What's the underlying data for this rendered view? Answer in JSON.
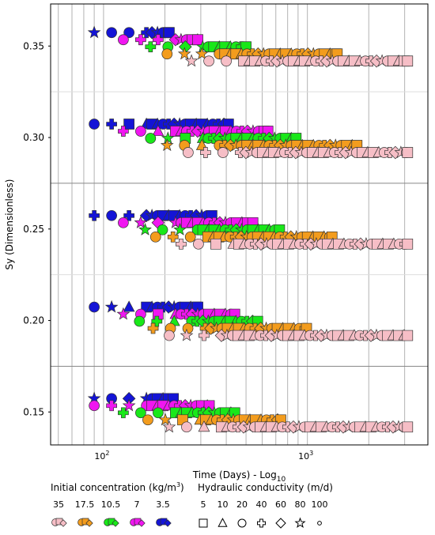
{
  "chart_data": {
    "type": "scatter",
    "title": "",
    "xlabel": "Time (Days) - Log",
    "xlabel_sub": "10",
    "ylabel": "Sy (Dimensionless)",
    "x_scale": "log",
    "xlim": [
      55,
      3900
    ],
    "ylim": [
      0.132,
      0.373
    ],
    "y_ticks": [
      {
        "value": 0.15,
        "label": "0.15"
      },
      {
        "value": 0.2,
        "label": "0.20"
      },
      {
        "value": 0.25,
        "label": "0.25"
      },
      {
        "value": 0.3,
        "label": "0.30"
      },
      {
        "value": 0.35,
        "label": "0.35"
      }
    ],
    "x_ticks": [
      {
        "value": 100,
        "label": "10",
        "sup": "2"
      },
      {
        "value": 1000,
        "label": "10",
        "sup": "3"
      }
    ],
    "grid": true,
    "group_separators_y": [
      0.175,
      0.275
    ],
    "group_centers_y": [
      0.15,
      0.2,
      0.25,
      0.3,
      0.35
    ],
    "concentration_legend": {
      "title": "Initial concentration (kg/m",
      "title_sup": "3",
      "title_end": ")",
      "items": [
        {
          "label": "35",
          "color": "#f6bec6"
        },
        {
          "label": "17.5",
          "color": "#f39c1d"
        },
        {
          "label": "10.5",
          "color": "#19e819"
        },
        {
          "label": "7",
          "color": "#f016f0"
        },
        {
          "label": "3.5",
          "color": "#1414d6"
        }
      ]
    },
    "conductivity_legend": {
      "title": "Hydraulic conductivity (m/d)",
      "items": [
        {
          "label": "5",
          "marker": "square"
        },
        {
          "label": "10",
          "marker": "triangle"
        },
        {
          "label": "20",
          "marker": "circle"
        },
        {
          "label": "40",
          "marker": "cross"
        },
        {
          "label": "60",
          "marker": "diamond"
        },
        {
          "label": "80",
          "marker": "star"
        },
        {
          "label": "100",
          "marker": "small-circle"
        }
      ]
    },
    "series": [
      {
        "sy": 0.35,
        "concentration": "3.5",
        "color": "#1414d6",
        "start": 90,
        "end": 210
      },
      {
        "sy": 0.35,
        "concentration": "7",
        "color": "#f016f0",
        "start": 125,
        "end": 290
      },
      {
        "sy": 0.35,
        "concentration": "10.5",
        "color": "#19e819",
        "start": 170,
        "end": 500
      },
      {
        "sy": 0.35,
        "concentration": "17.5",
        "color": "#f39c1d",
        "start": 205,
        "end": 1400
      },
      {
        "sy": 0.35,
        "concentration": "35",
        "color": "#f6bec6",
        "start": 270,
        "end": 3100
      },
      {
        "sy": 0.3,
        "concentration": "3.5",
        "color": "#1414d6",
        "start": 90,
        "end": 410
      },
      {
        "sy": 0.3,
        "concentration": "7",
        "color": "#f016f0",
        "start": 125,
        "end": 640
      },
      {
        "sy": 0.3,
        "concentration": "10.5",
        "color": "#19e819",
        "start": 170,
        "end": 880
      },
      {
        "sy": 0.3,
        "concentration": "17.5",
        "color": "#f39c1d",
        "start": 205,
        "end": 1750
      },
      {
        "sy": 0.3,
        "concentration": "35",
        "color": "#f6bec6",
        "start": 260,
        "end": 3100
      },
      {
        "sy": 0.25,
        "concentration": "3.5",
        "color": "#1414d6",
        "start": 90,
        "end": 340
      },
      {
        "sy": 0.25,
        "concentration": "7",
        "color": "#f016f0",
        "start": 125,
        "end": 540
      },
      {
        "sy": 0.25,
        "concentration": "10.5",
        "color": "#19e819",
        "start": 160,
        "end": 730
      },
      {
        "sy": 0.25,
        "concentration": "17.5",
        "color": "#f39c1d",
        "start": 180,
        "end": 1320
      },
      {
        "sy": 0.25,
        "concentration": "35",
        "color": "#f6bec6",
        "start": 240,
        "end": 3100
      },
      {
        "sy": 0.2,
        "concentration": "3.5",
        "color": "#1414d6",
        "start": 90,
        "end": 290
      },
      {
        "sy": 0.2,
        "concentration": "7",
        "color": "#f016f0",
        "start": 125,
        "end": 440
      },
      {
        "sy": 0.2,
        "concentration": "10.5",
        "color": "#19e819",
        "start": 150,
        "end": 570
      },
      {
        "sy": 0.2,
        "concentration": "17.5",
        "color": "#f39c1d",
        "start": 175,
        "end": 990
      },
      {
        "sy": 0.2,
        "concentration": "35",
        "color": "#f6bec6",
        "start": 210,
        "end": 3100
      },
      {
        "sy": 0.15,
        "concentration": "3.5",
        "color": "#1414d6",
        "start": 90,
        "end": 220
      },
      {
        "sy": 0.15,
        "concentration": "7",
        "color": "#f016f0",
        "start": 90,
        "end": 330
      },
      {
        "sy": 0.15,
        "concentration": "10.5",
        "color": "#19e819",
        "start": 125,
        "end": 440
      },
      {
        "sy": 0.15,
        "concentration": "17.5",
        "color": "#f39c1d",
        "start": 165,
        "end": 740
      },
      {
        "sy": 0.15,
        "concentration": "35",
        "color": "#f6bec6",
        "start": 210,
        "end": 3100
      }
    ]
  }
}
